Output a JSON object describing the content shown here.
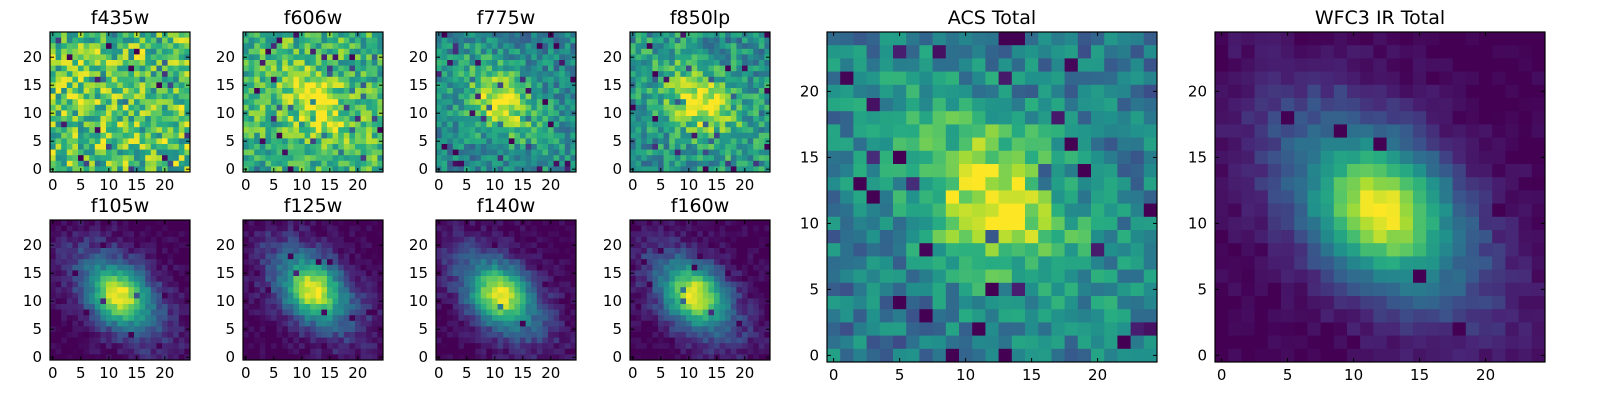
{
  "figure": {
    "colormap": "viridis",
    "colors": {
      "low": "#440154",
      "mid": "#21918c",
      "high": "#fde725"
    }
  },
  "chart_data": [
    {
      "type": "heatmap",
      "title": "f435w",
      "grid": [
        25,
        25
      ],
      "xlim": [
        0,
        24
      ],
      "ylim": [
        0,
        24
      ],
      "xticks": [
        0,
        5,
        10,
        15,
        20
      ],
      "yticks": [
        0,
        5,
        10,
        15,
        20
      ],
      "peak": null,
      "noise": 0.28,
      "seed": 11,
      "base": 0.72
    },
    {
      "type": "heatmap",
      "title": "f606w",
      "grid": [
        25,
        25
      ],
      "xlim": [
        0,
        24
      ],
      "ylim": [
        0,
        24
      ],
      "xticks": [
        0,
        5,
        10,
        15,
        20
      ],
      "yticks": [
        0,
        5,
        10,
        15,
        20
      ],
      "peak": [
        12,
        12
      ],
      "noise": 0.22,
      "seed": 23,
      "base": 0.65
    },
    {
      "type": "heatmap",
      "title": "f775w",
      "grid": [
        25,
        25
      ],
      "xlim": [
        0,
        24
      ],
      "ylim": [
        0,
        24
      ],
      "xticks": [
        0,
        5,
        10,
        15,
        20
      ],
      "yticks": [
        0,
        5,
        10,
        15,
        20
      ],
      "peak": [
        11,
        12
      ],
      "noise": 0.18,
      "seed": 37,
      "base": 0.45
    },
    {
      "type": "heatmap",
      "title": "f850lp",
      "grid": [
        25,
        25
      ],
      "xlim": [
        0,
        24
      ],
      "ylim": [
        0,
        24
      ],
      "xticks": [
        0,
        5,
        10,
        15,
        20
      ],
      "yticks": [
        0,
        5,
        10,
        15,
        20
      ],
      "peak": [
        12,
        12
      ],
      "noise": 0.2,
      "seed": 41,
      "base": 0.5
    },
    {
      "type": "heatmap",
      "title": "f105w",
      "grid": [
        25,
        25
      ],
      "xlim": [
        0,
        24
      ],
      "ylim": [
        0,
        24
      ],
      "xticks": [
        0,
        5,
        10,
        15,
        20
      ],
      "yticks": [
        0,
        5,
        10,
        15,
        20
      ],
      "peak": [
        12,
        11
      ],
      "noise": 0.08,
      "seed": 53,
      "base": 0.0
    },
    {
      "type": "heatmap",
      "title": "f125w",
      "grid": [
        25,
        25
      ],
      "xlim": [
        0,
        24
      ],
      "ylim": [
        0,
        24
      ],
      "xticks": [
        0,
        5,
        10,
        15,
        20
      ],
      "yticks": [
        0,
        5,
        10,
        15,
        20
      ],
      "peak": [
        12,
        12
      ],
      "noise": 0.08,
      "seed": 67,
      "base": 0.0
    },
    {
      "type": "heatmap",
      "title": "f140w",
      "grid": [
        25,
        25
      ],
      "xlim": [
        0,
        24
      ],
      "ylim": [
        0,
        24
      ],
      "xticks": [
        0,
        5,
        10,
        15,
        20
      ],
      "yticks": [
        0,
        5,
        10,
        15,
        20
      ],
      "peak": [
        11,
        11
      ],
      "noise": 0.08,
      "seed": 71,
      "base": 0.0
    },
    {
      "type": "heatmap",
      "title": "f160w",
      "grid": [
        25,
        25
      ],
      "xlim": [
        0,
        24
      ],
      "ylim": [
        0,
        24
      ],
      "xticks": [
        0,
        5,
        10,
        15,
        20
      ],
      "yticks": [
        0,
        5,
        10,
        15,
        20
      ],
      "peak": [
        11,
        11
      ],
      "noise": 0.08,
      "seed": 83,
      "base": 0.0
    },
    {
      "type": "heatmap",
      "title": "ACS Total",
      "grid": [
        25,
        25
      ],
      "xlim": [
        0,
        24
      ],
      "ylim": [
        0,
        24
      ],
      "xticks": [
        0,
        5,
        10,
        15,
        20
      ],
      "yticks": [
        0,
        5,
        10,
        15,
        20
      ],
      "peak": [
        12,
        12
      ],
      "noise": 0.17,
      "seed": 97,
      "base": 0.4
    },
    {
      "type": "heatmap",
      "title": "WFC3 IR Total",
      "grid": [
        25,
        25
      ],
      "xlim": [
        0,
        24
      ],
      "ylim": [
        0,
        24
      ],
      "xticks": [
        0,
        5,
        10,
        15,
        20
      ],
      "yticks": [
        0,
        5,
        10,
        15,
        20
      ],
      "peak": [
        12,
        11
      ],
      "noise": 0.05,
      "seed": 101,
      "base": 0.0
    }
  ]
}
